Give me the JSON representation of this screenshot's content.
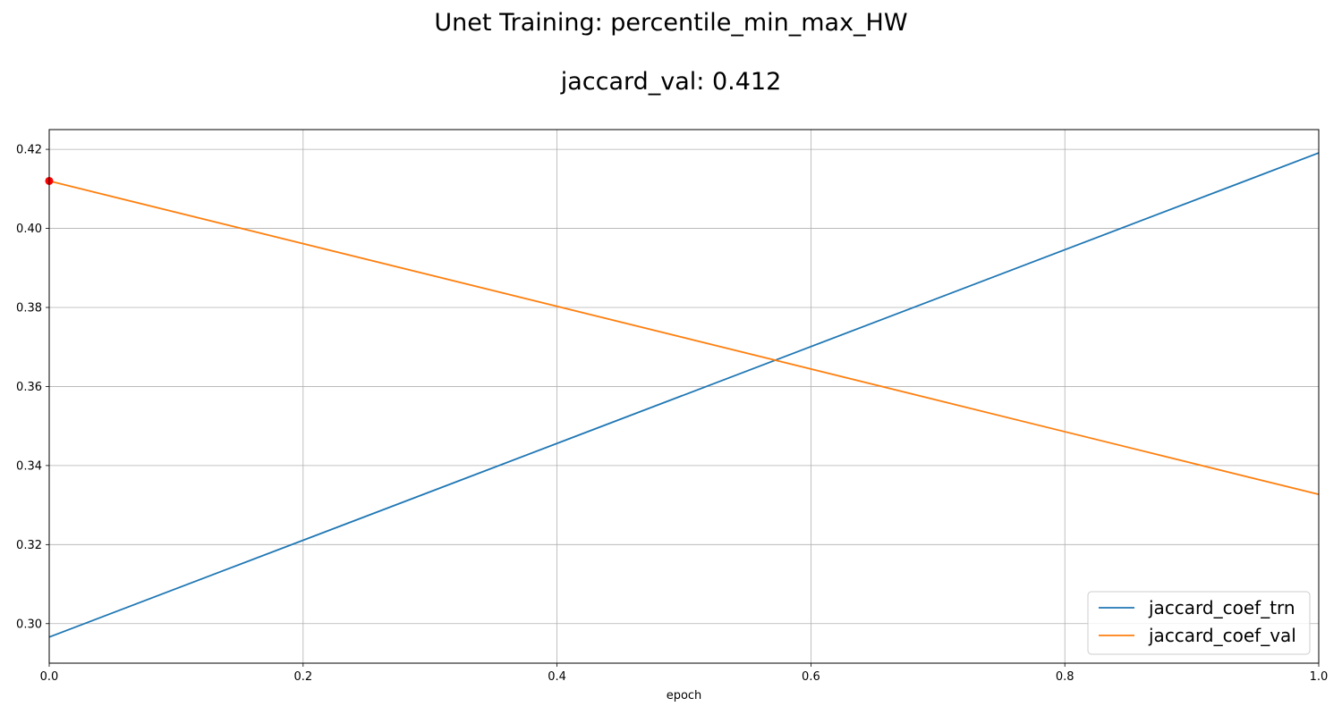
{
  "title": "Unet Training: percentile_min_max_HW",
  "subtitle": "jaccard_val: 0.412",
  "chart_data": {
    "type": "line",
    "xlabel": "epoch",
    "ylabel": "",
    "xlim": [
      0.0,
      1.0
    ],
    "ylim": [
      0.29,
      0.425
    ],
    "xticks": [
      "0.0",
      "0.2",
      "0.4",
      "0.6",
      "0.8",
      "1.0"
    ],
    "yticks": [
      "0.30",
      "0.32",
      "0.34",
      "0.36",
      "0.38",
      "0.40",
      "0.42"
    ],
    "grid": true,
    "legend_position": "lower-right",
    "x": [
      0,
      1
    ],
    "series": [
      {
        "name": "jaccard_coef_trn",
        "values": [
          0.2966,
          0.4191
        ],
        "color": "#1f77b4"
      },
      {
        "name": "jaccard_coef_val",
        "values": [
          0.412,
          0.3327
        ],
        "color": "#ff7f0e"
      }
    ],
    "marker": {
      "x": 0,
      "y": 0.412,
      "color": "#ff0000"
    }
  }
}
